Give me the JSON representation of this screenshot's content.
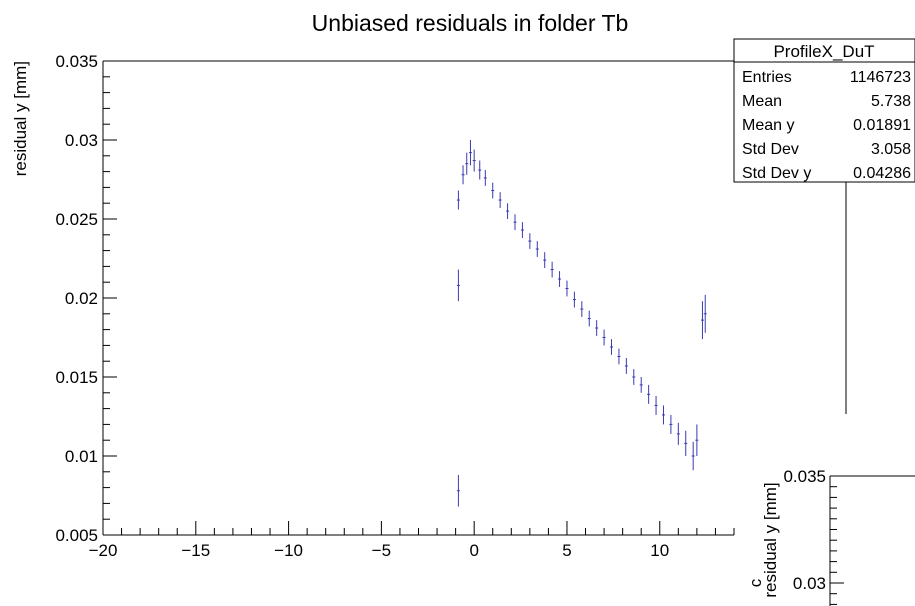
{
  "chart_data": {
    "type": "scatter",
    "title": "Unbiased residuals in folder Tb",
    "xlabel": "",
    "ylabel": "residual y [mm]",
    "xlim": [
      -20,
      14
    ],
    "ylim": [
      0.005,
      0.035
    ],
    "x_ticks": [
      "−20",
      "−15",
      "−10",
      "−5",
      "0",
      "5",
      "10"
    ],
    "y_ticks": [
      "0.005",
      "0.01",
      "0.015",
      "0.02",
      "0.025",
      "0.03",
      "0.035"
    ],
    "grid": false,
    "marker_color": "#3a3ab0",
    "series": [
      {
        "points": [
          {
            "x": -0.85,
            "y": 0.0078,
            "err": 0.001
          },
          {
            "x": -0.85,
            "y": 0.0208,
            "err": 0.001
          },
          {
            "x": -0.85,
            "y": 0.0262,
            "err": 0.0006
          },
          {
            "x": -0.6,
            "y": 0.0278,
            "err": 0.0006
          },
          {
            "x": -0.4,
            "y": 0.0285,
            "err": 0.0007
          },
          {
            "x": -0.2,
            "y": 0.0292,
            "err": 0.0008
          },
          {
            "x": 0.0,
            "y": 0.0287,
            "err": 0.0007
          },
          {
            "x": 0.3,
            "y": 0.0281,
            "err": 0.0006
          },
          {
            "x": 0.6,
            "y": 0.0276,
            "err": 0.0005
          },
          {
            "x": 1.0,
            "y": 0.0268,
            "err": 0.0005
          },
          {
            "x": 1.4,
            "y": 0.0262,
            "err": 0.0005
          },
          {
            "x": 1.8,
            "y": 0.0255,
            "err": 0.0005
          },
          {
            "x": 2.2,
            "y": 0.0248,
            "err": 0.0005
          },
          {
            "x": 2.6,
            "y": 0.0243,
            "err": 0.0005
          },
          {
            "x": 3.0,
            "y": 0.0236,
            "err": 0.0005
          },
          {
            "x": 3.4,
            "y": 0.0231,
            "err": 0.0005
          },
          {
            "x": 3.8,
            "y": 0.0224,
            "err": 0.0005
          },
          {
            "x": 4.2,
            "y": 0.0218,
            "err": 0.0005
          },
          {
            "x": 4.6,
            "y": 0.0212,
            "err": 0.0005
          },
          {
            "x": 5.0,
            "y": 0.0206,
            "err": 0.0005
          },
          {
            "x": 5.4,
            "y": 0.0199,
            "err": 0.0005
          },
          {
            "x": 5.8,
            "y": 0.0193,
            "err": 0.0005
          },
          {
            "x": 6.2,
            "y": 0.0187,
            "err": 0.0005
          },
          {
            "x": 6.6,
            "y": 0.0181,
            "err": 0.0005
          },
          {
            "x": 7.0,
            "y": 0.0175,
            "err": 0.0005
          },
          {
            "x": 7.4,
            "y": 0.0169,
            "err": 0.0005
          },
          {
            "x": 7.8,
            "y": 0.0163,
            "err": 0.0005
          },
          {
            "x": 8.2,
            "y": 0.0157,
            "err": 0.0005
          },
          {
            "x": 8.6,
            "y": 0.015,
            "err": 0.0005
          },
          {
            "x": 9.0,
            "y": 0.0145,
            "err": 0.0005
          },
          {
            "x": 9.4,
            "y": 0.0139,
            "err": 0.0006
          },
          {
            "x": 9.8,
            "y": 0.0132,
            "err": 0.0006
          },
          {
            "x": 10.2,
            "y": 0.0126,
            "err": 0.0006
          },
          {
            "x": 10.6,
            "y": 0.012,
            "err": 0.0006
          },
          {
            "x": 11.0,
            "y": 0.0114,
            "err": 0.0007
          },
          {
            "x": 11.4,
            "y": 0.0108,
            "err": 0.0008
          },
          {
            "x": 11.8,
            "y": 0.01,
            "err": 0.0009
          },
          {
            "x": 12.0,
            "y": 0.011,
            "err": 0.001
          },
          {
            "x": 12.3,
            "y": 0.0186,
            "err": 0.0012
          },
          {
            "x": 12.45,
            "y": 0.019,
            "err": 0.0012
          }
        ]
      }
    ]
  },
  "stats_box": {
    "title": "ProfileX_DuT",
    "rows": [
      {
        "label": "Entries",
        "value": "1146723"
      },
      {
        "label": "Mean",
        "value": "5.738"
      },
      {
        "label": "Mean y",
        "value": "0.01891"
      },
      {
        "label": "Std Dev",
        "value": "3.058"
      },
      {
        "label": "Std Dev y",
        "value": "0.04286"
      }
    ]
  },
  "inset": {
    "ylabel": "residual y [mm]",
    "y_ticks": [
      "0.035",
      "0.03"
    ],
    "x_label_fragment": "c"
  }
}
